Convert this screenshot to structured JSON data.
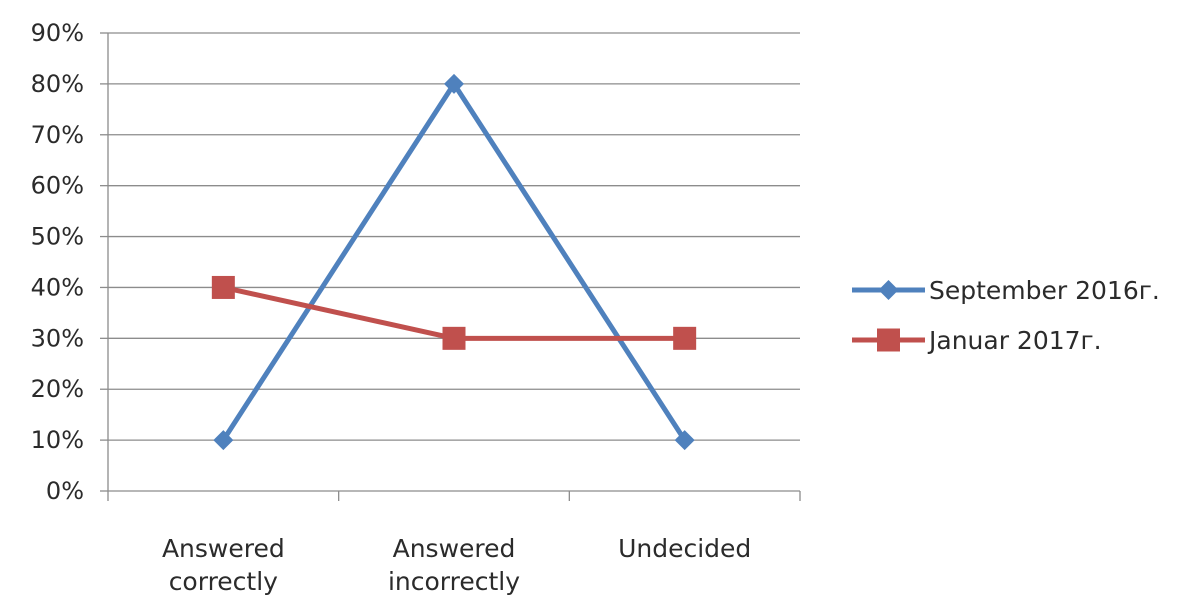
{
  "chart_data": {
    "type": "line",
    "title": "",
    "xlabel": "",
    "ylabel": "",
    "ylim": [
      0,
      90
    ],
    "yticks": [
      "0%",
      "10%",
      "20%",
      "30%",
      "40%",
      "50%",
      "60%",
      "70%",
      "80%",
      "90%"
    ],
    "categories": [
      [
        "Answered",
        "correctly"
      ],
      [
        "Answered",
        "incorrectly"
      ],
      [
        "Undecided"
      ]
    ],
    "grid": true,
    "legend_position": "right",
    "series": [
      {
        "name": "September 2016г.",
        "values": [
          10,
          80,
          10
        ],
        "color": "#4f81bd",
        "marker": "diamond"
      },
      {
        "name": "Januar 2017г.",
        "values": [
          40,
          30,
          30
        ],
        "color": "#c0504d",
        "marker": "square"
      }
    ]
  }
}
